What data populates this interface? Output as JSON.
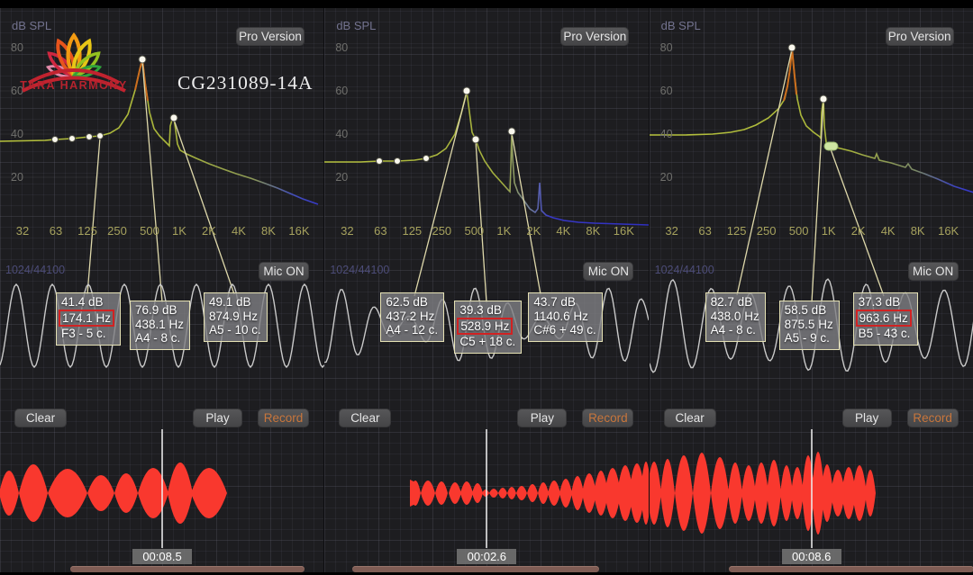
{
  "logo": {
    "text": "TARA HARMONY"
  },
  "title": "CG231089-14A",
  "shared": {
    "db_spl": "dB SPL",
    "buffer": "1024/44100",
    "pro": "Pro Version",
    "mic": "Mic",
    "mic_state": "ON",
    "clear": "Clear",
    "play": "Play",
    "record": "Record",
    "y_ticks": [
      "80",
      "60",
      "40",
      "20"
    ],
    "x_ticks": [
      "32",
      "63",
      "125",
      "250",
      "500",
      "1K",
      "2K",
      "4K",
      "8K",
      "16K"
    ]
  },
  "colors": {
    "spectrum_yellow": "#b6c23c",
    "spectrum_orange": "#cc6e1e",
    "spectrum_blue": "#3434cc",
    "record_red": "#f9382e",
    "record_button_text": "#c8763c",
    "callout_border": "#e5e1b4",
    "highlight_red": "#d12222"
  },
  "panels": [
    {
      "callouts": [
        {
          "db": "41.4 dB",
          "hz": "174.1 Hz",
          "note": "F3 - 5 c."
        },
        {
          "db": "76.9 dB",
          "hz": "438.1 Hz",
          "note": "A4 - 8 c."
        },
        {
          "db": "49.1 dB",
          "hz": "874.9 Hz",
          "note": "A5 - 10 c."
        }
      ],
      "highlighted_hz": "174.1 Hz",
      "timestamp": "00:08.5"
    },
    {
      "callouts": [
        {
          "db": "62.5 dB",
          "hz": "437.2 Hz",
          "note": "A4 - 12 c."
        },
        {
          "db": "39.3 dB",
          "hz": "528.9 Hz",
          "note": "C5 + 18 c."
        },
        {
          "db": "43.7 dB",
          "hz": "1140.6 Hz",
          "note": "C#6 + 49 c."
        }
      ],
      "highlighted_hz": "528.9 Hz",
      "timestamp": "00:02.6"
    },
    {
      "callouts": [
        {
          "db": "82.7 dB",
          "hz": "438.0 Hz",
          "note": "A4 - 8 c."
        },
        {
          "db": "58.5 dB",
          "hz": "875.5 Hz",
          "note": "A5 - 9 c."
        },
        {
          "db": "37.3 dB",
          "hz": "963.6 Hz",
          "note": "B5 - 43 c."
        }
      ],
      "highlighted_hz": "963.6 Hz",
      "timestamp": "00:08.6"
    }
  ]
}
